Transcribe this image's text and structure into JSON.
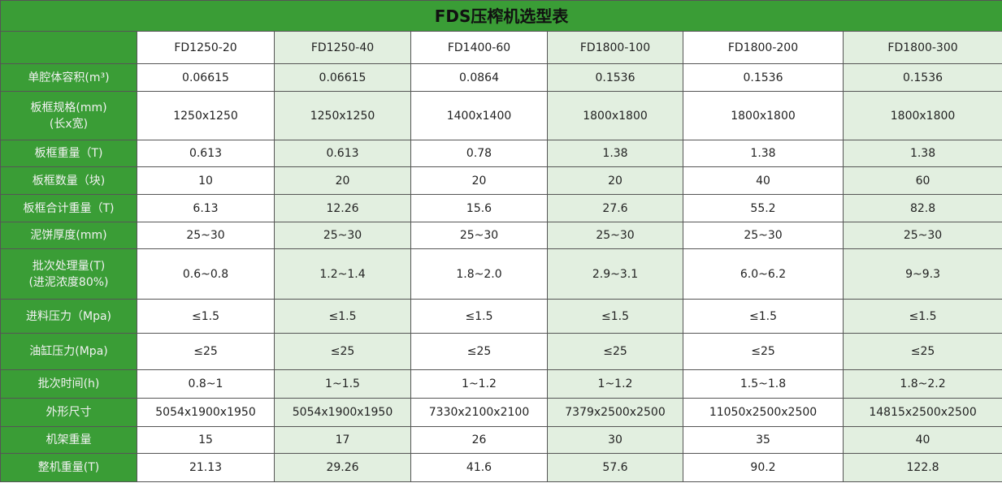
{
  "title": "FDS压榨机选型表",
  "colors": {
    "header_green": "#3a9d36",
    "alt_column_tint": "#e2efe0"
  },
  "models": [
    "FD1250-20",
    "FD1250-40",
    "FD1400-60",
    "FD1800-100",
    "FD1800-200",
    "FD1800-300"
  ],
  "rows": [
    {
      "label": "单腔体容积(m³)",
      "values": [
        "0.06615",
        "0.06615",
        "0.0864",
        "0.1536",
        "0.1536",
        "0.1536"
      ]
    },
    {
      "label": "板框规格(mm)\n(长x宽)",
      "values": [
        "1250x1250",
        "1250x1250",
        "1400x1400",
        "1800x1800",
        "1800x1800",
        "1800x1800"
      ]
    },
    {
      "label": "板框重量（T)",
      "values": [
        "0.613",
        "0.613",
        "0.78",
        "1.38",
        "1.38",
        "1.38"
      ]
    },
    {
      "label": "板框数量（块)",
      "values": [
        "10",
        "20",
        "20",
        "20",
        "40",
        "60"
      ]
    },
    {
      "label": "板框合计重量（T)",
      "values": [
        "6.13",
        "12.26",
        "15.6",
        "27.6",
        "55.2",
        "82.8"
      ]
    },
    {
      "label": "泥饼厚度(mm)",
      "values": [
        "25~30",
        "25~30",
        "25~30",
        "25~30",
        "25~30",
        "25~30"
      ]
    },
    {
      "label": "批次处理量(T)\n(进泥浓度80%)",
      "values": [
        "0.6~0.8",
        "1.2~1.4",
        "1.8~2.0",
        "2.9~3.1",
        "6.0~6.2",
        "9~9.3"
      ]
    },
    {
      "label": "进料压力（Mpa)",
      "values": [
        "≤1.5",
        "≤1.5",
        "≤1.5",
        "≤1.5",
        "≤1.5",
        "≤1.5"
      ]
    },
    {
      "label": "油缸压力(Mpa)",
      "values": [
        "≤25",
        "≤25",
        "≤25",
        "≤25",
        "≤25",
        "≤25"
      ]
    },
    {
      "label": "批次时间(h)",
      "values": [
        "0.8~1",
        "1~1.5",
        "1~1.2",
        "1~1.2",
        "1.5~1.8",
        "1.8~2.2"
      ]
    },
    {
      "label": "外形尺寸",
      "values": [
        "5054x1900x1950",
        "5054x1900x1950",
        "7330x2100x2100",
        "7379x2500x2500",
        "11050x2500x2500",
        "14815x2500x2500"
      ]
    },
    {
      "label": "机架重量",
      "values": [
        "15",
        "17",
        "26",
        "30",
        "35",
        "40"
      ]
    },
    {
      "label": "整机重量(T)",
      "values": [
        "21.13",
        "29.26",
        "41.6",
        "57.6",
        "90.2",
        "122.8"
      ]
    }
  ]
}
